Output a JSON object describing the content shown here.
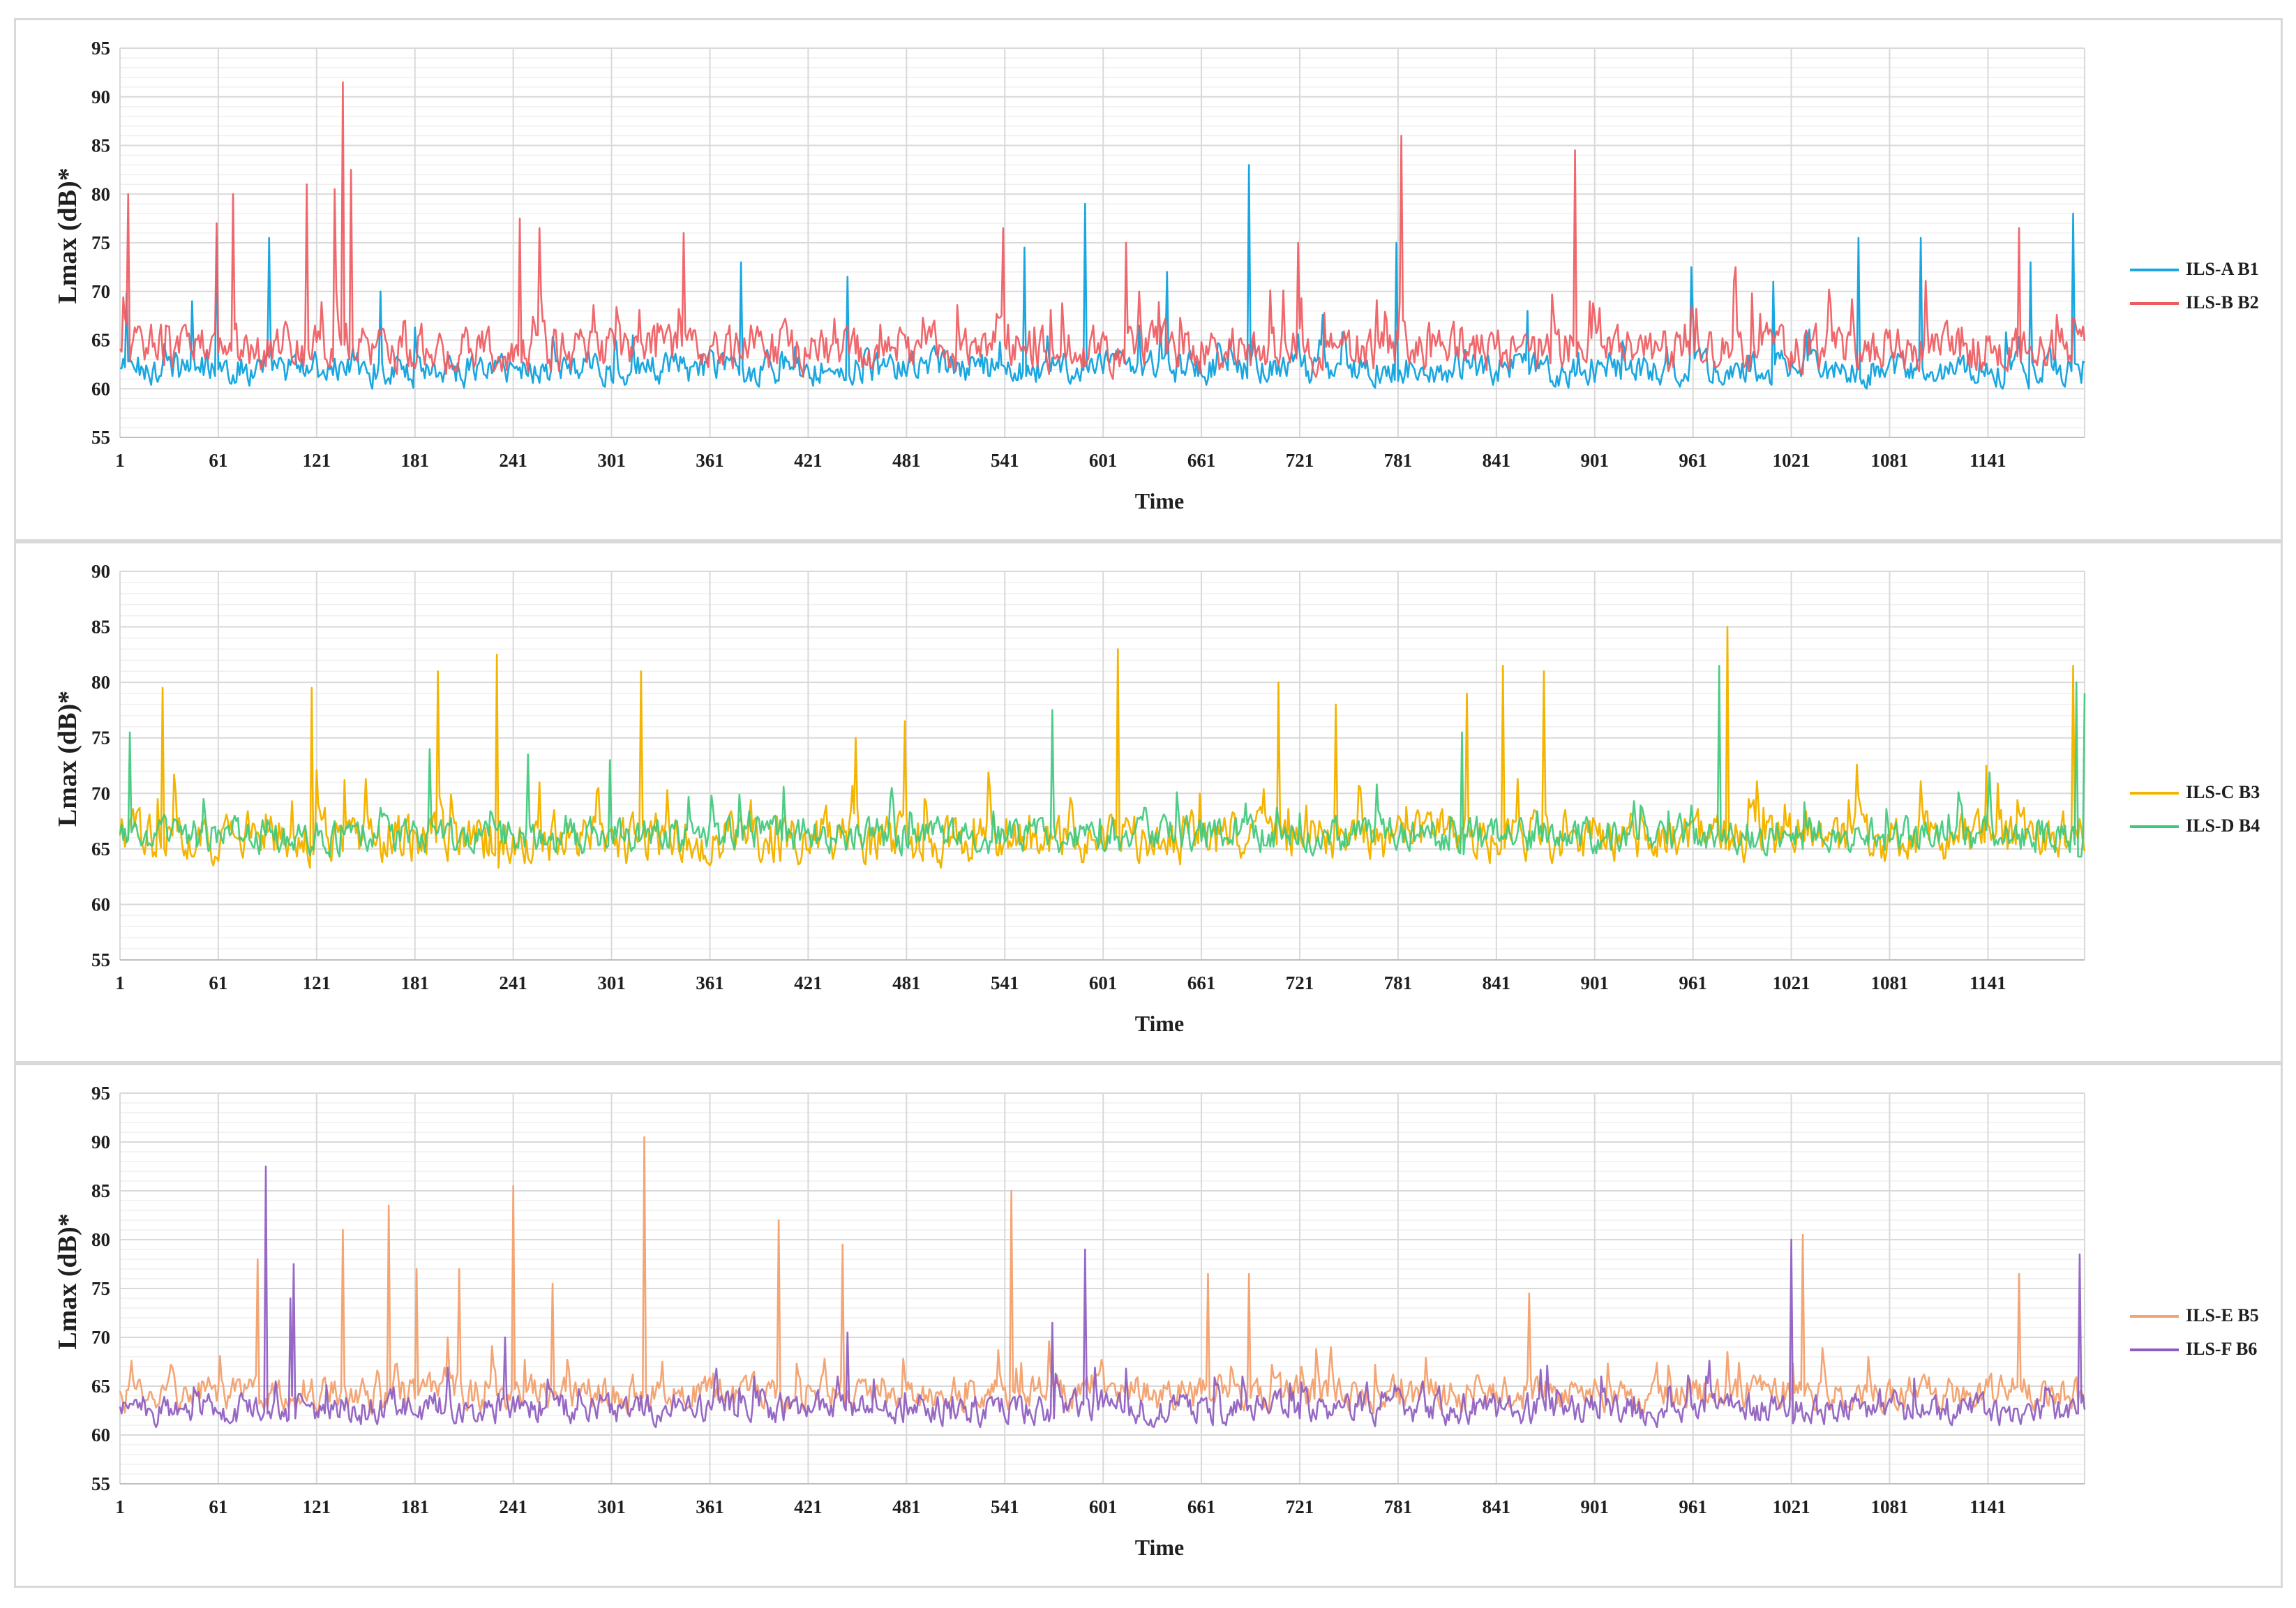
{
  "chart_data": [
    {
      "type": "line",
      "ylabel": "Lmax (dB)*",
      "xlabel": "Time",
      "ylim": [
        55,
        95
      ],
      "yticks": [
        55,
        60,
        65,
        70,
        75,
        80,
        85,
        90,
        95
      ],
      "xlim": [
        1,
        1200
      ],
      "xticks": [
        1,
        61,
        121,
        181,
        241,
        301,
        361,
        421,
        481,
        541,
        601,
        661,
        721,
        781,
        841,
        901,
        961,
        1021,
        1081,
        1141
      ],
      "grid": true,
      "legend_position": "right",
      "series": [
        {
          "name": "ILS-A B1",
          "color": "#1aa7e0",
          "base": 61.3,
          "spread": 3.2,
          "peaks": [
            [
              5,
              69.8
            ],
            [
              45,
              69
            ],
            [
              60,
              75.5
            ],
            [
              92,
              75.5
            ],
            [
              160,
              70
            ],
            [
              380,
              73
            ],
            [
              445,
              71.5
            ],
            [
              553,
              74.5
            ],
            [
              590,
              79
            ],
            [
              640,
              72
            ],
            [
              690,
              83
            ],
            [
              780,
              75
            ],
            [
              860,
              68
            ],
            [
              960,
              72.5
            ],
            [
              1010,
              71
            ],
            [
              1062,
              75.5
            ],
            [
              1100,
              75.5
            ],
            [
              1167,
              73
            ],
            [
              1193,
              78
            ]
          ],
          "values": []
        },
        {
          "name": "ILS-B B2",
          "color": "#ef5a5f",
          "base": 63,
          "spread": 4.5,
          "peaks": [
            [
              6,
              80
            ],
            [
              60,
              77
            ],
            [
              70,
              80
            ],
            [
              115,
              81
            ],
            [
              132,
              80.5
            ],
            [
              137,
              91.5
            ],
            [
              142,
              82.5
            ],
            [
              245,
              77.5
            ],
            [
              257,
              76.5
            ],
            [
              345,
              76
            ],
            [
              540,
              76.5
            ],
            [
              615,
              75
            ],
            [
              720,
              75
            ],
            [
              783,
              86
            ],
            [
              889,
              84.5
            ],
            [
              1160,
              76.5
            ]
          ],
          "values": []
        }
      ]
    },
    {
      "type": "line",
      "ylabel": "Lmax (dB)*",
      "xlabel": "Time",
      "ylim": [
        55,
        90
      ],
      "yticks": [
        55,
        60,
        65,
        70,
        75,
        80,
        85,
        90
      ],
      "xlim": [
        1,
        1200
      ],
      "xticks": [
        1,
        61,
        121,
        181,
        241,
        301,
        361,
        421,
        481,
        541,
        601,
        661,
        721,
        781,
        841,
        901,
        961,
        1021,
        1081,
        1141
      ],
      "grid": true,
      "legend_position": "right",
      "series": [
        {
          "name": "ILS-C B3",
          "color": "#f4b400",
          "base": 65,
          "spread": 4.2,
          "peaks": [
            [
              27,
              79.5
            ],
            [
              118,
              79.5
            ],
            [
              195,
              81
            ],
            [
              231,
              82.5
            ],
            [
              319,
              81
            ],
            [
              450,
              75
            ],
            [
              480,
              76.5
            ],
            [
              610,
              83
            ],
            [
              708,
              80
            ],
            [
              743,
              78
            ],
            [
              823,
              79
            ],
            [
              845,
              81.5
            ],
            [
              870,
              81
            ],
            [
              982,
              85
            ],
            [
              1193,
              81.5
            ]
          ],
          "values": []
        },
        {
          "name": "ILS-D B4",
          "color": "#3ec97c",
          "base": 65.5,
          "spread": 3.0,
          "peaks": [
            [
              7,
              75.5
            ],
            [
              190,
              74
            ],
            [
              250,
              73.5
            ],
            [
              300,
              73
            ],
            [
              570,
              77.5
            ],
            [
              820,
              75.5
            ],
            [
              977,
              81.5
            ],
            [
              1195,
              80
            ],
            [
              1200,
              79
            ]
          ],
          "values": []
        }
      ]
    },
    {
      "type": "line",
      "ylabel": "Lmax (dB)*",
      "xlabel": "Time",
      "ylim": [
        55,
        95
      ],
      "yticks": [
        55,
        60,
        65,
        70,
        75,
        80,
        85,
        90,
        95
      ],
      "xlim": [
        1,
        1200
      ],
      "xticks": [
        1,
        61,
        121,
        181,
        241,
        301,
        361,
        421,
        481,
        541,
        601,
        661,
        721,
        781,
        841,
        901,
        961,
        1021,
        1081,
        1141
      ],
      "grid": true,
      "legend_position": "right",
      "series": [
        {
          "name": "ILS-E B5",
          "color": "#f4a574",
          "base": 63.5,
          "spread": 3.3,
          "peaks": [
            [
              85,
              78
            ],
            [
              137,
              81
            ],
            [
              165,
              83.5
            ],
            [
              182,
              77
            ],
            [
              208,
              77
            ],
            [
              241,
              85.5
            ],
            [
              265,
              75.5
            ],
            [
              321,
              90.5
            ],
            [
              403,
              82
            ],
            [
              442,
              79.5
            ],
            [
              545,
              85
            ],
            [
              665,
              76.5
            ],
            [
              690,
              76.5
            ],
            [
              861,
              74.5
            ],
            [
              1028,
              80.5
            ],
            [
              1160,
              76.5
            ]
          ],
          "values": []
        },
        {
          "name": "ILS-F B6",
          "color": "#8e5cc0",
          "base": 62,
          "spread": 3.0,
          "peaks": [
            [
              90,
              87.5
            ],
            [
              107,
              77.5
            ],
            [
              105,
              74
            ],
            [
              236,
              70
            ],
            [
              445,
              70.5
            ],
            [
              570,
              71.5
            ],
            [
              590,
              79
            ],
            [
              1021,
              80
            ],
            [
              1197,
              78.5
            ]
          ],
          "values": []
        }
      ]
    }
  ]
}
